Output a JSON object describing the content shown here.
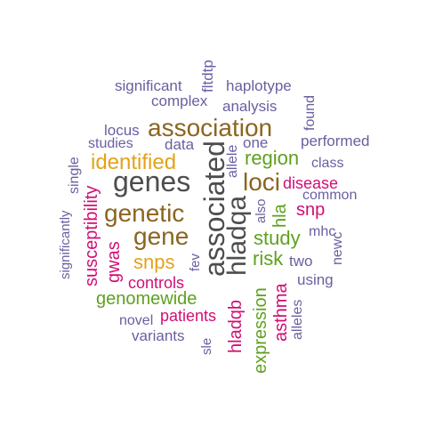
{
  "colors": {
    "dark": "#4d4d4d",
    "brown": "#8b6520",
    "orange": "#e3a21a",
    "green": "#5ea11f",
    "magenta": "#d10e75",
    "purple": "#6a5fa0"
  },
  "words": [
    "significant",
    "fltdtp",
    "haplotype",
    "complex",
    "analysis",
    "found",
    "locus",
    "association",
    "studies",
    "data",
    "one",
    "performed",
    "single",
    "identified",
    "allele",
    "region",
    "class",
    "genes",
    "associated",
    "loci",
    "disease",
    "significantly",
    "common",
    "genetic",
    "hladqa",
    "also",
    "snp",
    "hla",
    "gene",
    "mhc",
    "susceptibility",
    "study",
    "newc",
    "gwas",
    "fev",
    "risk",
    "snps",
    "two",
    "controls",
    "asthma",
    "using",
    "genomewide",
    "patients",
    "hladqb",
    "expression",
    "novel",
    "alleles",
    "variants",
    "sle"
  ]
}
